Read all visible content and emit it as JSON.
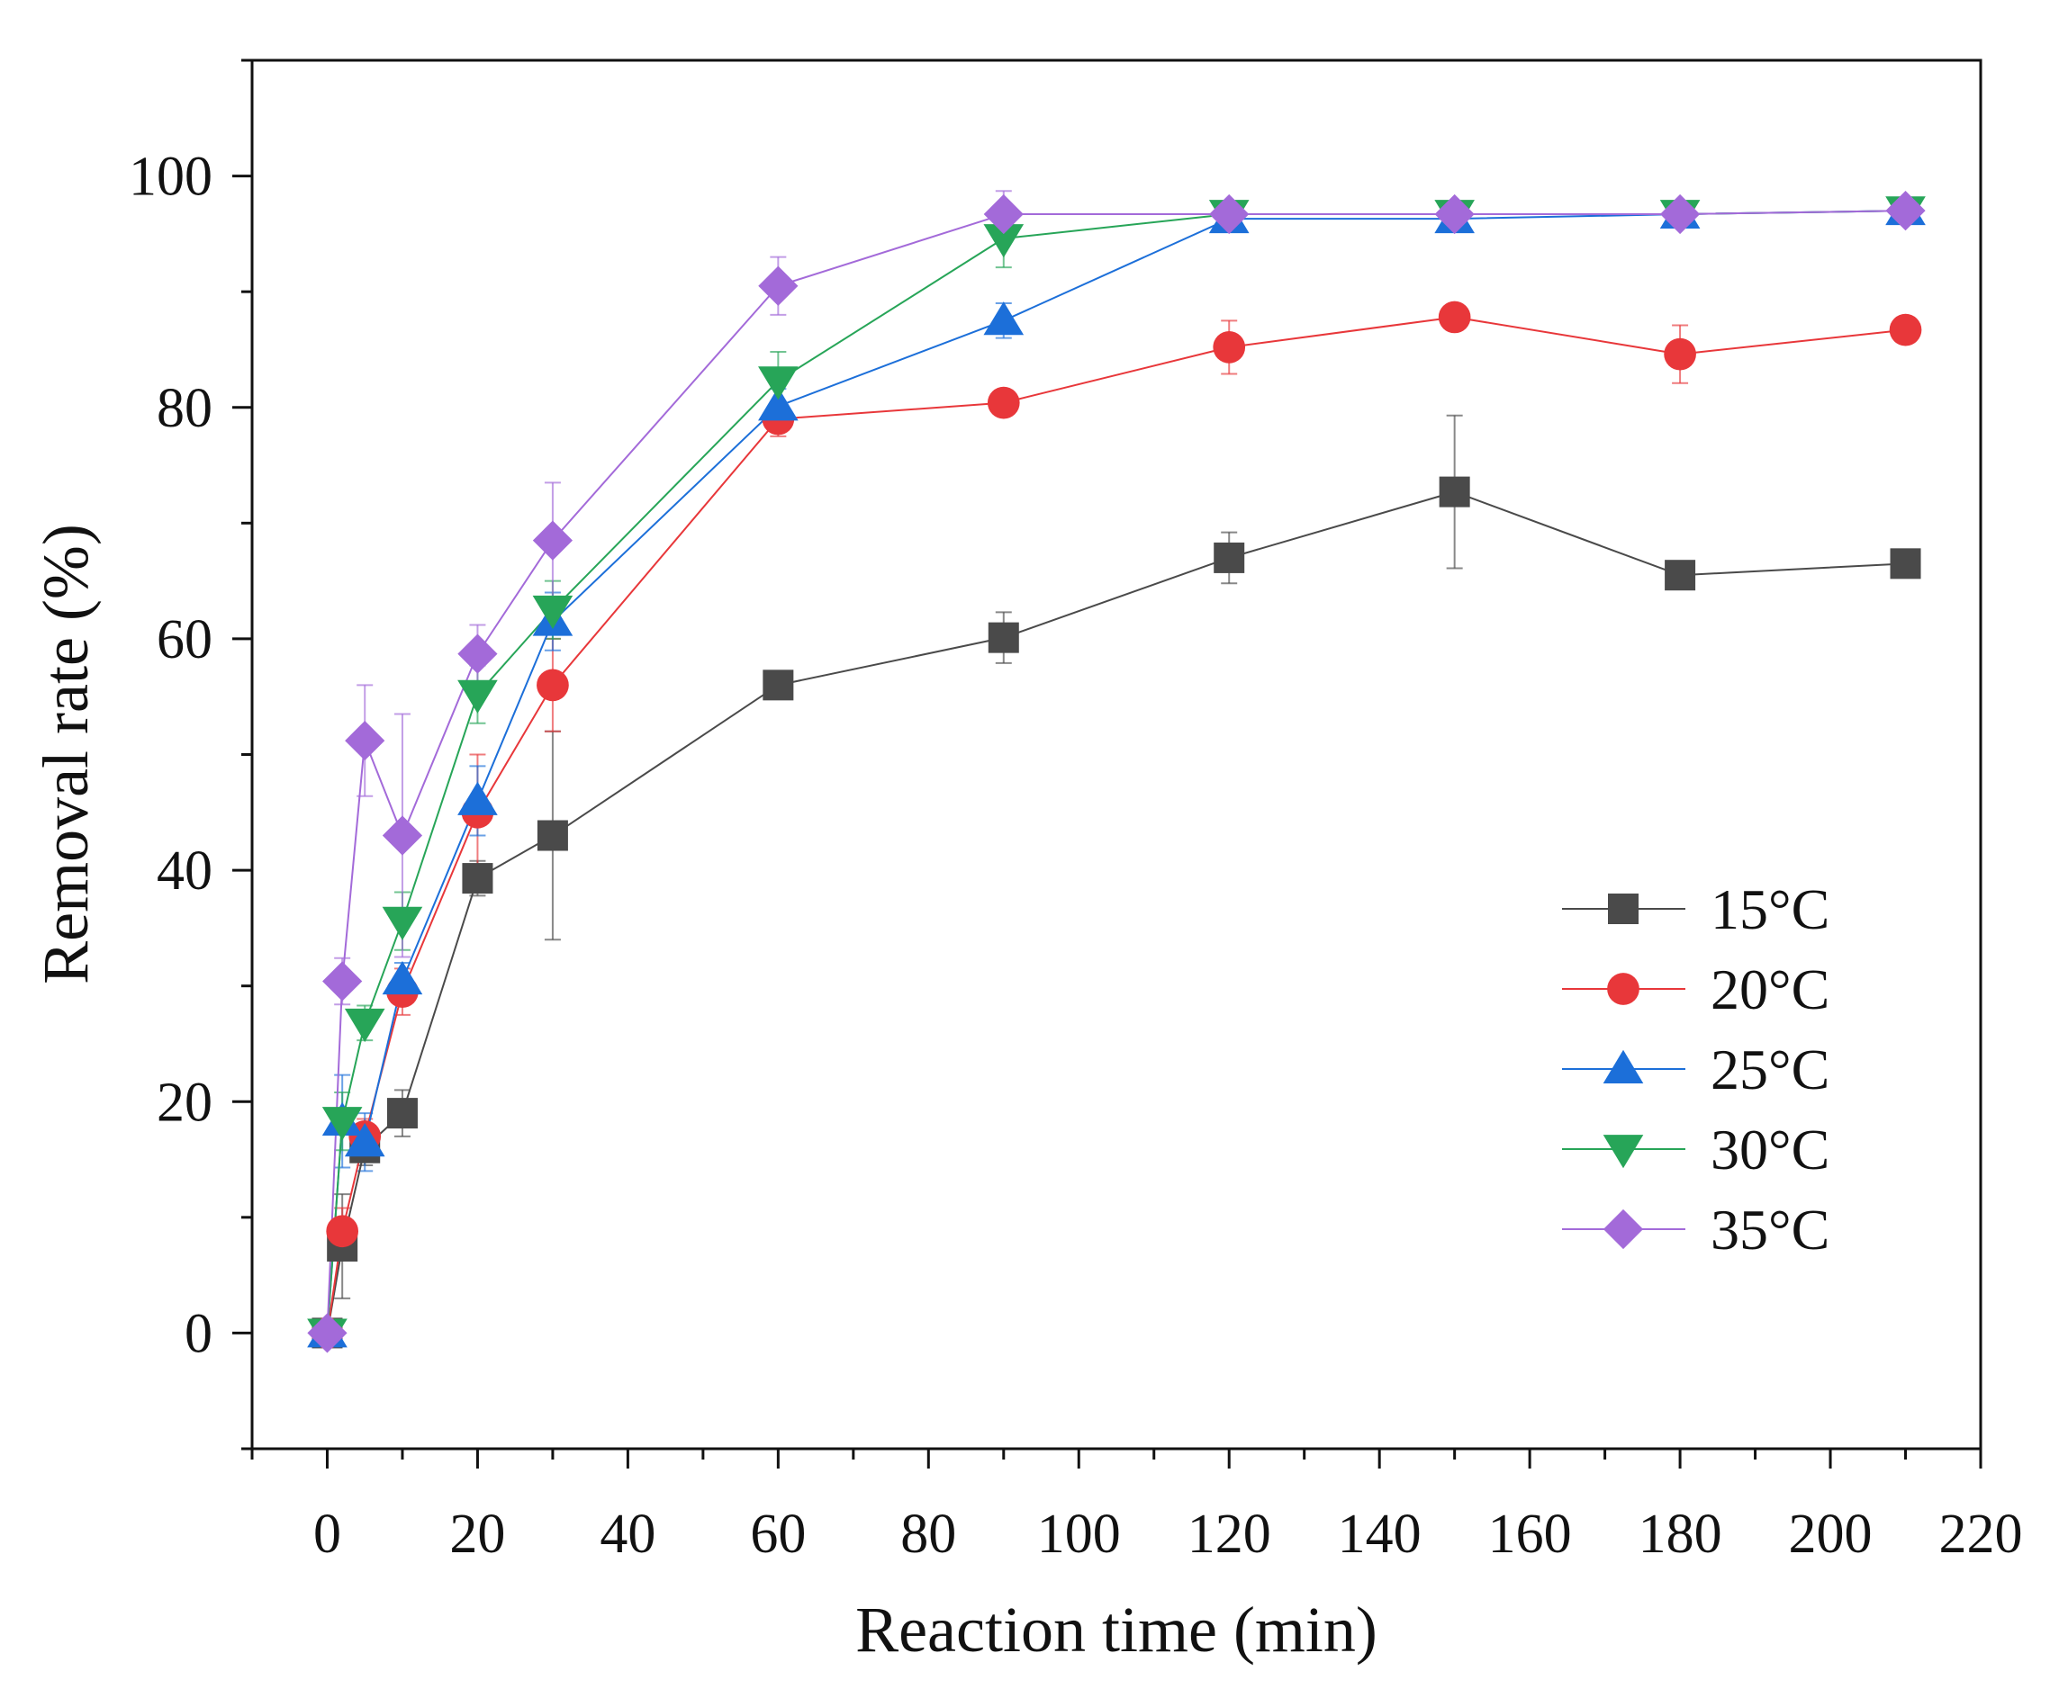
{
  "chart_data": {
    "type": "line",
    "title": "",
    "xlabel": "Reaction time (min)",
    "ylabel": "Removal rate (%)",
    "xlim": [
      -10,
      220
    ],
    "ylim": [
      -10,
      110
    ],
    "xticks": [
      0,
      20,
      40,
      60,
      80,
      100,
      120,
      140,
      160,
      180,
      200,
      220
    ],
    "yticks": [
      0,
      20,
      40,
      60,
      80,
      100
    ],
    "grid": false,
    "legend_position": "bottom-right",
    "x": [
      0,
      2,
      5,
      10,
      20,
      30,
      60,
      90,
      120,
      150,
      180,
      210
    ],
    "series": [
      {
        "name": "15°C",
        "marker": "square",
        "color": "#4a4a4a",
        "values": [
          0,
          7.5,
          16,
          19,
          39.3,
          43,
          56,
          60.1,
          67,
          72.7,
          65.5,
          66.5
        ],
        "errors": [
          0,
          4.5,
          1.5,
          2,
          1.5,
          9,
          0.8,
          2.2,
          2.2,
          6.6,
          0.5,
          0.5
        ]
      },
      {
        "name": "20°C",
        "marker": "circle",
        "color": "#e8373a",
        "values": [
          0,
          8.8,
          17,
          29.5,
          45,
          56,
          79,
          80.4,
          85.2,
          87.8,
          84.6,
          86.7
        ],
        "errors": [
          0,
          2,
          1.5,
          2,
          5,
          4,
          1.5,
          0.8,
          2.3,
          0.8,
          2.5,
          0.8
        ]
      },
      {
        "name": "25°C",
        "marker": "triangle-up",
        "color": "#1c6fd9",
        "values": [
          0,
          18.3,
          16.5,
          30.5,
          46,
          61.5,
          80.1,
          87.5,
          96.3,
          96.3,
          96.7,
          97
        ],
        "errors": [
          0,
          4,
          2.5,
          1.5,
          3,
          2.5,
          1.5,
          1.5,
          0.3,
          0.3,
          0.3,
          0.3
        ]
      },
      {
        "name": "30°C",
        "marker": "triangle-down",
        "color": "#27a558",
        "values": [
          0,
          18.3,
          26.8,
          35.6,
          55.2,
          62.5,
          82.3,
          94.6,
          96.7,
          96.7,
          96.7,
          97
        ],
        "errors": [
          0,
          2.5,
          1.5,
          2.5,
          2.5,
          2.5,
          2.5,
          2.5,
          0.3,
          0.3,
          0.3,
          0.3
        ]
      },
      {
        "name": "35°C",
        "marker": "diamond",
        "color": "#a36ad9",
        "values": [
          0,
          30.4,
          51.2,
          43,
          58.7,
          68.5,
          90.5,
          96.7,
          96.7,
          96.7,
          96.7,
          97
        ],
        "errors": [
          0,
          2,
          4.8,
          10.5,
          2.5,
          5,
          2.5,
          2,
          0.3,
          0.3,
          0.3,
          0.3
        ]
      }
    ]
  }
}
